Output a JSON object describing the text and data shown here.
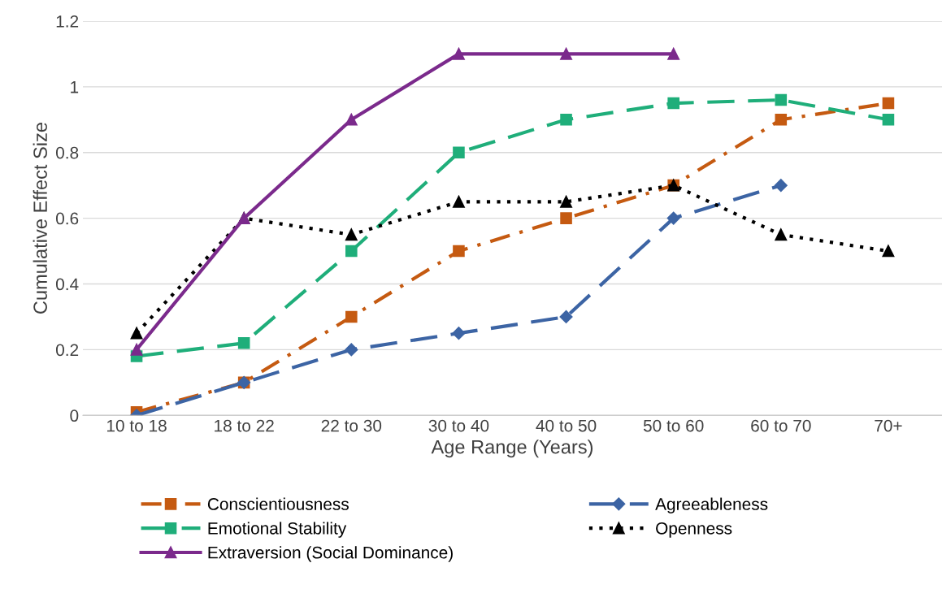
{
  "chart_data": {
    "type": "line",
    "xlabel": "Age Range (Years)",
    "ylabel": "Cumulative Effect Size",
    "categories": [
      "10 to 18",
      "18 to 22",
      "22 to 30",
      "30 to 40",
      "40 to 50",
      "50 to 60",
      "60 to 70",
      "70+"
    ],
    "ylim": [
      0,
      1.2
    ],
    "yticks": [
      0,
      0.2,
      0.4,
      0.6,
      0.8,
      1,
      1.2
    ],
    "grid": "y",
    "legend": "bottom",
    "series": [
      {
        "name": "Conscientiousness",
        "color": "#c55a11",
        "marker": "square",
        "line_style": "dashdot",
        "values": [
          0.01,
          0.1,
          0.3,
          0.5,
          0.6,
          0.7,
          0.9,
          0.95
        ]
      },
      {
        "name": "Agreeableness",
        "color": "#3c64a4",
        "marker": "diamond",
        "line_style": "dashed",
        "values": [
          0,
          0.1,
          0.2,
          0.25,
          0.3,
          0.6,
          0.7,
          null
        ]
      },
      {
        "name": "Emotional Stability",
        "color": "#1fae7a",
        "marker": "square",
        "line_style": "dashed",
        "values": [
          0.18,
          0.22,
          0.5,
          0.8,
          0.9,
          0.95,
          0.96,
          0.9
        ]
      },
      {
        "name": "Openness",
        "color": "#000000",
        "marker": "triangle",
        "line_style": "dotted",
        "values": [
          0.25,
          0.6,
          0.55,
          0.65,
          0.65,
          0.7,
          0.55,
          0.5
        ]
      },
      {
        "name": "Extraversion (Social Dominance)",
        "color": "#7b2a8c",
        "marker": "triangle",
        "line_style": "solid",
        "values": [
          0.2,
          0.6,
          0.9,
          1.1,
          1.1,
          1.1,
          null,
          null
        ]
      }
    ]
  }
}
